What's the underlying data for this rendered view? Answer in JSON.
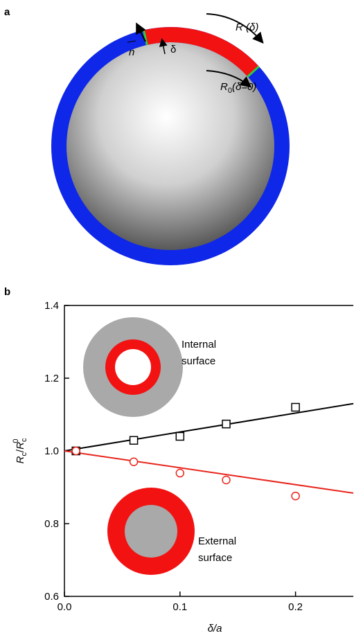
{
  "panel_a": {
    "label": "a",
    "normal": "n",
    "thickness": "δ",
    "arc_label": "R (δ)",
    "ref_arc": {
      "symbol": "R",
      "subscript": "0",
      "args": "(δ=0)"
    }
  },
  "chart_data": {
    "type": "scatter",
    "label": "b",
    "xlabel": "δ/a",
    "ylabel": {
      "symbol": "R",
      "subscript": "c",
      "slash": "/",
      "superscript": "0"
    },
    "xlim": [
      0,
      0.25
    ],
    "ylim": [
      0.6,
      1.4
    ],
    "xticks": [
      {
        "value": 0,
        "label": "0.0"
      },
      0.1,
      0.2
    ],
    "yticks": [
      0.6,
      0.8,
      {
        "value": 1,
        "label": "1.0"
      },
      1.2,
      1.4
    ],
    "series": [
      {
        "marker": "square",
        "color": "#000000",
        "x": [
          0.01,
          0.06,
          0.1,
          0.14,
          0.2
        ],
        "values": [
          1.0,
          1.029,
          1.04,
          1.074,
          1.12
        ]
      },
      {
        "marker": "circle",
        "color": "#e8231b",
        "x": [
          0.01,
          0.06,
          0.1,
          0.14,
          0.2
        ],
        "values": [
          1.0,
          0.97,
          0.939,
          0.92,
          0.876
        ]
      },
      {
        "marker": "line",
        "color": "#000000",
        "x": [
          0,
          0.25
        ],
        "values": [
          1.0,
          1.13
        ]
      },
      {
        "marker": "line",
        "color": "#e8231b",
        "x": [
          0,
          0.25
        ],
        "values": [
          1.0,
          0.884
        ]
      }
    ],
    "annotations": [
      [
        "Internal",
        "surface"
      ],
      [
        "External",
        "surface"
      ]
    ]
  }
}
